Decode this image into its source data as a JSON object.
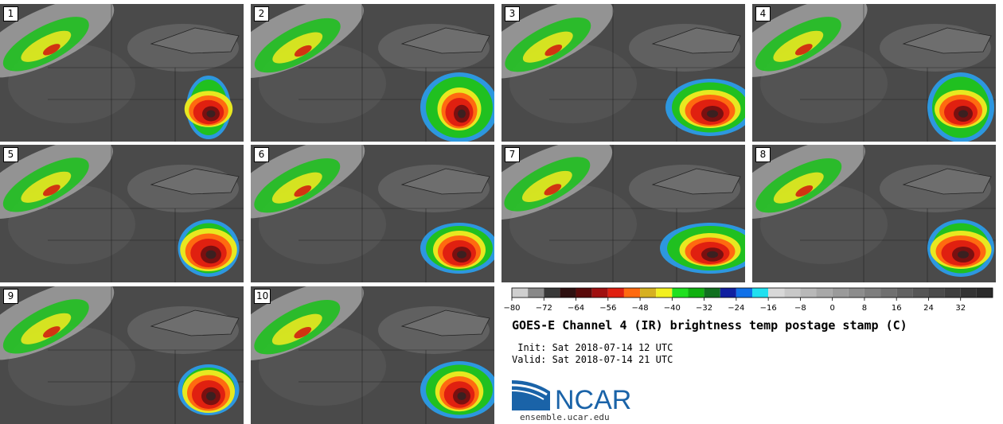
{
  "panels": [
    {
      "label": "1"
    },
    {
      "label": "2"
    },
    {
      "label": "3"
    },
    {
      "label": "4"
    },
    {
      "label": "5"
    },
    {
      "label": "6"
    },
    {
      "label": "7"
    },
    {
      "label": "8"
    },
    {
      "label": "9"
    },
    {
      "label": "10"
    }
  ],
  "chart_data": {
    "type": "heatmap",
    "title": "GOES-E Channel 4 (IR) brightness temp postage stamp (C)",
    "colorbar": {
      "unit": "C",
      "range": [
        -80,
        40
      ],
      "tick_labels": [
        "−80",
        "−72",
        "−64",
        "−56",
        "−48",
        "−40",
        "−32",
        "−24",
        "−16",
        "−8",
        "0",
        "8",
        "16",
        "24",
        "32"
      ],
      "tick_values": [
        -80,
        -72,
        -64,
        -56,
        -48,
        -40,
        -32,
        -24,
        -16,
        -8,
        0,
        8,
        16,
        24,
        32
      ],
      "bin_width": 4,
      "colors": [
        "#cfcfcf",
        "#888888",
        "#383838",
        "#2e1010",
        "#5a0a0a",
        "#a01010",
        "#e02010",
        "#ff6a10",
        "#d6b020",
        "#f2f020",
        "#20e020",
        "#10b010",
        "#107020",
        "#1020a0",
        "#1070e8",
        "#20e0f0",
        "#d8d8d8",
        "#c8c8c8",
        "#b8b8b8",
        "#a8a8a8",
        "#9a9a9a",
        "#8c8c8c",
        "#7e7e7e",
        "#707070",
        "#626262",
        "#565656",
        "#4a4a4a",
        "#3e3e3e",
        "#333333",
        "#2a2a2a"
      ]
    },
    "members": 10
  },
  "info": {
    "init": " Init: Sat 2018-07-14 12 UTC",
    "valid": "Valid: Sat 2018-07-14 21 UTC"
  },
  "logo": {
    "name": "NCAR",
    "url": "ensemble.ucar.edu",
    "color": "#1a63a8"
  }
}
